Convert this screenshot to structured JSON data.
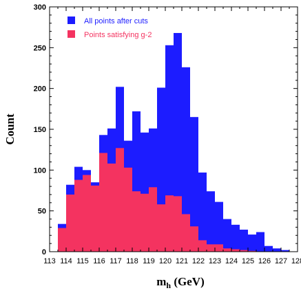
{
  "chart_data": {
    "type": "bar",
    "subtype": "histogram-overlay",
    "xlabel": "m",
    "xlabel_sub": "h",
    "xlabel_unit": " (GeV)",
    "ylabel": "Count",
    "xlim": [
      113,
      128
    ],
    "ylim": [
      0,
      300
    ],
    "xticks": [
      113,
      114,
      115,
      116,
      117,
      118,
      119,
      120,
      121,
      122,
      123,
      124,
      125,
      126,
      127,
      128
    ],
    "yticks": [
      0,
      50,
      100,
      150,
      200,
      250,
      300
    ],
    "bin_width": 0.5,
    "legend_position": "top-left",
    "series": [
      {
        "name": "All points after cuts",
        "color": "#1c1cff",
        "bins": [
          {
            "x": 113.75,
            "value": 34
          },
          {
            "x": 114.25,
            "value": 82
          },
          {
            "x": 114.75,
            "value": 104
          },
          {
            "x": 115.25,
            "value": 100
          },
          {
            "x": 115.75,
            "value": 85
          },
          {
            "x": 116.25,
            "value": 143
          },
          {
            "x": 116.75,
            "value": 151
          },
          {
            "x": 117.25,
            "value": 202
          },
          {
            "x": 117.75,
            "value": 136
          },
          {
            "x": 118.25,
            "value": 172
          },
          {
            "x": 118.75,
            "value": 146
          },
          {
            "x": 119.25,
            "value": 151
          },
          {
            "x": 119.75,
            "value": 201
          },
          {
            "x": 120.25,
            "value": 253
          },
          {
            "x": 120.75,
            "value": 268
          },
          {
            "x": 121.25,
            "value": 226
          },
          {
            "x": 121.75,
            "value": 165
          },
          {
            "x": 122.25,
            "value": 97
          },
          {
            "x": 122.75,
            "value": 74
          },
          {
            "x": 123.25,
            "value": 61
          },
          {
            "x": 123.75,
            "value": 40
          },
          {
            "x": 124.25,
            "value": 33
          },
          {
            "x": 124.75,
            "value": 27
          },
          {
            "x": 125.25,
            "value": 21
          },
          {
            "x": 125.75,
            "value": 24
          },
          {
            "x": 126.25,
            "value": 7
          },
          {
            "x": 126.75,
            "value": 4
          },
          {
            "x": 127.25,
            "value": 2
          }
        ]
      },
      {
        "name": "Points satisfying g-2",
        "color": "#f43360",
        "bins": [
          {
            "x": 113.75,
            "value": 29
          },
          {
            "x": 114.25,
            "value": 70
          },
          {
            "x": 114.75,
            "value": 88
          },
          {
            "x": 115.25,
            "value": 94
          },
          {
            "x": 115.75,
            "value": 81
          },
          {
            "x": 116.25,
            "value": 121
          },
          {
            "x": 116.75,
            "value": 108
          },
          {
            "x": 117.25,
            "value": 127
          },
          {
            "x": 117.75,
            "value": 103
          },
          {
            "x": 118.25,
            "value": 74
          },
          {
            "x": 118.75,
            "value": 71
          },
          {
            "x": 119.25,
            "value": 79
          },
          {
            "x": 119.75,
            "value": 58
          },
          {
            "x": 120.25,
            "value": 69
          },
          {
            "x": 120.75,
            "value": 68
          },
          {
            "x": 121.25,
            "value": 46
          },
          {
            "x": 121.75,
            "value": 31
          },
          {
            "x": 122.25,
            "value": 14
          },
          {
            "x": 122.75,
            "value": 9
          },
          {
            "x": 123.25,
            "value": 9
          },
          {
            "x": 123.75,
            "value": 4
          },
          {
            "x": 124.25,
            "value": 3
          },
          {
            "x": 124.75,
            "value": 2
          },
          {
            "x": 125.25,
            "value": 1
          }
        ]
      }
    ]
  }
}
